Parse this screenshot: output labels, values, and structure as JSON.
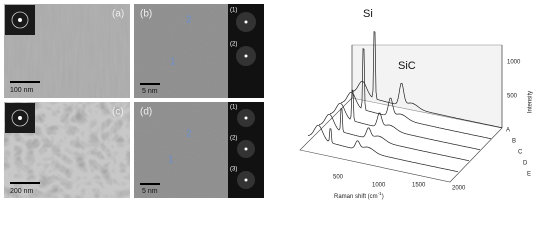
{
  "panels": [
    {
      "label": "(a)",
      "scale_bar": "100 nm"
    },
    {
      "label": "(b)",
      "scale_bar": "5 nm",
      "fft_labels": [
        "(1)",
        "(2)"
      ],
      "region_labels": [
        "1",
        "2"
      ]
    },
    {
      "label": "(c)",
      "scale_bar": "200 nm"
    },
    {
      "label": "(d)",
      "scale_bar": "5 nm",
      "fft_labels": [
        "(1)",
        "(2)",
        "(3)"
      ],
      "region_labels": [
        "1",
        "2"
      ]
    }
  ],
  "raman": {
    "peak_labels": [
      "Si",
      "SiC"
    ],
    "x_label": "Raman shift (cm",
    "x_label_sup": "-1",
    "x_label_end": ")",
    "y_label": "Intensity",
    "xticks": [
      "500",
      "1000",
      "1500",
      "2000"
    ],
    "yticks": [
      "500",
      "1000"
    ],
    "series": [
      "A",
      "B",
      "C",
      "D",
      "E"
    ]
  }
}
